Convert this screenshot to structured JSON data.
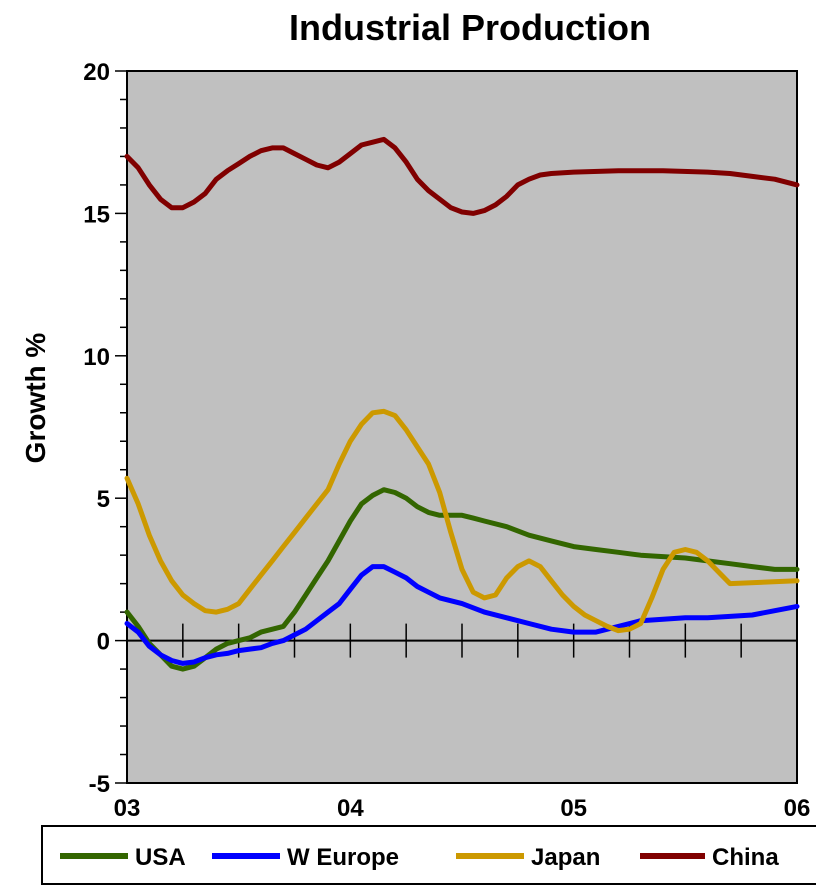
{
  "chart_data": {
    "type": "line",
    "title": "Industrial Production",
    "xlabel": "",
    "ylabel": "Growth %",
    "xlim": [
      2003,
      2006
    ],
    "ylim": [
      -5,
      20
    ],
    "y_ticks": [
      -5,
      0,
      5,
      10,
      15,
      20
    ],
    "x_ticks": [
      {
        "label": "03",
        "value": 2003
      },
      {
        "label": "04",
        "value": 2004
      },
      {
        "label": "05",
        "value": 2005
      },
      {
        "label": "06",
        "value": 2006
      }
    ],
    "grid": false,
    "plot_background": "#C0C0C0",
    "legend_position": "bottom",
    "series": [
      {
        "name": "USA",
        "color": "#336600",
        "points": [
          [
            2003.0,
            1.0
          ],
          [
            2003.05,
            0.5
          ],
          [
            2003.1,
            -0.1
          ],
          [
            2003.15,
            -0.5
          ],
          [
            2003.2,
            -0.9
          ],
          [
            2003.25,
            -1.0
          ],
          [
            2003.3,
            -0.9
          ],
          [
            2003.35,
            -0.6
          ],
          [
            2003.4,
            -0.3
          ],
          [
            2003.45,
            -0.1
          ],
          [
            2003.5,
            0.0
          ],
          [
            2003.55,
            0.1
          ],
          [
            2003.6,
            0.3
          ],
          [
            2003.7,
            0.5
          ],
          [
            2003.75,
            1.0
          ],
          [
            2003.8,
            1.6
          ],
          [
            2003.85,
            2.2
          ],
          [
            2003.9,
            2.8
          ],
          [
            2003.95,
            3.5
          ],
          [
            2004.0,
            4.2
          ],
          [
            2004.05,
            4.8
          ],
          [
            2004.1,
            5.1
          ],
          [
            2004.15,
            5.3
          ],
          [
            2004.2,
            5.2
          ],
          [
            2004.25,
            5.0
          ],
          [
            2004.3,
            4.7
          ],
          [
            2004.35,
            4.5
          ],
          [
            2004.4,
            4.4
          ],
          [
            2004.5,
            4.4
          ],
          [
            2004.55,
            4.3
          ],
          [
            2004.6,
            4.2
          ],
          [
            2004.7,
            4.0
          ],
          [
            2004.8,
            3.7
          ],
          [
            2004.9,
            3.5
          ],
          [
            2005.0,
            3.3
          ],
          [
            2005.1,
            3.2
          ],
          [
            2005.2,
            3.1
          ],
          [
            2005.3,
            3.0
          ],
          [
            2005.4,
            2.95
          ],
          [
            2005.5,
            2.9
          ],
          [
            2005.6,
            2.8
          ],
          [
            2005.7,
            2.7
          ],
          [
            2005.8,
            2.6
          ],
          [
            2005.9,
            2.5
          ],
          [
            2006.0,
            2.5
          ]
        ]
      },
      {
        "name": "W Europe",
        "color": "#0000FF",
        "points": [
          [
            2003.0,
            0.6
          ],
          [
            2003.05,
            0.3
          ],
          [
            2003.1,
            -0.2
          ],
          [
            2003.15,
            -0.5
          ],
          [
            2003.2,
            -0.7
          ],
          [
            2003.25,
            -0.8
          ],
          [
            2003.3,
            -0.75
          ],
          [
            2003.35,
            -0.6
          ],
          [
            2003.4,
            -0.5
          ],
          [
            2003.45,
            -0.45
          ],
          [
            2003.5,
            -0.35
          ],
          [
            2003.55,
            -0.3
          ],
          [
            2003.6,
            -0.25
          ],
          [
            2003.65,
            -0.1
          ],
          [
            2003.7,
            0.0
          ],
          [
            2003.75,
            0.2
          ],
          [
            2003.8,
            0.4
          ],
          [
            2003.85,
            0.7
          ],
          [
            2003.9,
            1.0
          ],
          [
            2003.95,
            1.3
          ],
          [
            2004.0,
            1.8
          ],
          [
            2004.05,
            2.3
          ],
          [
            2004.1,
            2.6
          ],
          [
            2004.15,
            2.6
          ],
          [
            2004.2,
            2.4
          ],
          [
            2004.25,
            2.2
          ],
          [
            2004.3,
            1.9
          ],
          [
            2004.35,
            1.7
          ],
          [
            2004.4,
            1.5
          ],
          [
            2004.5,
            1.3
          ],
          [
            2004.6,
            1.0
          ],
          [
            2004.7,
            0.8
          ],
          [
            2004.8,
            0.6
          ],
          [
            2004.9,
            0.4
          ],
          [
            2005.0,
            0.3
          ],
          [
            2005.1,
            0.3
          ],
          [
            2005.2,
            0.5
          ],
          [
            2005.3,
            0.7
          ],
          [
            2005.4,
            0.75
          ],
          [
            2005.5,
            0.8
          ],
          [
            2005.6,
            0.8
          ],
          [
            2005.7,
            0.85
          ],
          [
            2005.8,
            0.9
          ],
          [
            2005.9,
            1.05
          ],
          [
            2006.0,
            1.2
          ]
        ]
      },
      {
        "name": "Japan",
        "color": "#CC9900",
        "points": [
          [
            2003.0,
            5.7
          ],
          [
            2003.05,
            4.8
          ],
          [
            2003.1,
            3.7
          ],
          [
            2003.15,
            2.8
          ],
          [
            2003.2,
            2.1
          ],
          [
            2003.25,
            1.6
          ],
          [
            2003.3,
            1.3
          ],
          [
            2003.35,
            1.05
          ],
          [
            2003.4,
            1.0
          ],
          [
            2003.45,
            1.1
          ],
          [
            2003.5,
            1.3
          ],
          [
            2003.55,
            1.8
          ],
          [
            2003.6,
            2.3
          ],
          [
            2003.65,
            2.8
          ],
          [
            2003.7,
            3.3
          ],
          [
            2003.75,
            3.8
          ],
          [
            2003.8,
            4.3
          ],
          [
            2003.85,
            4.8
          ],
          [
            2003.9,
            5.3
          ],
          [
            2003.95,
            6.2
          ],
          [
            2004.0,
            7.0
          ],
          [
            2004.05,
            7.6
          ],
          [
            2004.1,
            8.0
          ],
          [
            2004.15,
            8.05
          ],
          [
            2004.2,
            7.9
          ],
          [
            2004.25,
            7.4
          ],
          [
            2004.3,
            6.8
          ],
          [
            2004.35,
            6.2
          ],
          [
            2004.4,
            5.2
          ],
          [
            2004.45,
            3.8
          ],
          [
            2004.5,
            2.5
          ],
          [
            2004.55,
            1.7
          ],
          [
            2004.6,
            1.5
          ],
          [
            2004.65,
            1.6
          ],
          [
            2004.7,
            2.2
          ],
          [
            2004.75,
            2.6
          ],
          [
            2004.8,
            2.8
          ],
          [
            2004.85,
            2.6
          ],
          [
            2004.9,
            2.1
          ],
          [
            2004.95,
            1.6
          ],
          [
            2005.0,
            1.2
          ],
          [
            2005.05,
            0.9
          ],
          [
            2005.1,
            0.7
          ],
          [
            2005.15,
            0.5
          ],
          [
            2005.2,
            0.35
          ],
          [
            2005.25,
            0.4
          ],
          [
            2005.3,
            0.6
          ],
          [
            2005.35,
            1.5
          ],
          [
            2005.4,
            2.5
          ],
          [
            2005.45,
            3.1
          ],
          [
            2005.5,
            3.2
          ],
          [
            2005.55,
            3.1
          ],
          [
            2005.6,
            2.8
          ],
          [
            2005.65,
            2.4
          ],
          [
            2005.7,
            2.0
          ],
          [
            2006.0,
            2.1
          ]
        ]
      },
      {
        "name": "China",
        "color": "#800000",
        "points": [
          [
            2003.0,
            17.0
          ],
          [
            2003.05,
            16.6
          ],
          [
            2003.1,
            16.0
          ],
          [
            2003.15,
            15.5
          ],
          [
            2003.2,
            15.2
          ],
          [
            2003.25,
            15.2
          ],
          [
            2003.3,
            15.4
          ],
          [
            2003.35,
            15.7
          ],
          [
            2003.4,
            16.2
          ],
          [
            2003.45,
            16.5
          ],
          [
            2003.5,
            16.75
          ],
          [
            2003.55,
            17.0
          ],
          [
            2003.6,
            17.2
          ],
          [
            2003.65,
            17.3
          ],
          [
            2003.7,
            17.3
          ],
          [
            2003.75,
            17.1
          ],
          [
            2003.8,
            16.9
          ],
          [
            2003.85,
            16.7
          ],
          [
            2003.9,
            16.6
          ],
          [
            2003.95,
            16.8
          ],
          [
            2004.0,
            17.1
          ],
          [
            2004.05,
            17.4
          ],
          [
            2004.1,
            17.5
          ],
          [
            2004.15,
            17.6
          ],
          [
            2004.2,
            17.3
          ],
          [
            2004.25,
            16.8
          ],
          [
            2004.3,
            16.2
          ],
          [
            2004.35,
            15.8
          ],
          [
            2004.4,
            15.5
          ],
          [
            2004.45,
            15.2
          ],
          [
            2004.5,
            15.05
          ],
          [
            2004.55,
            15.0
          ],
          [
            2004.6,
            15.1
          ],
          [
            2004.65,
            15.3
          ],
          [
            2004.7,
            15.6
          ],
          [
            2004.75,
            16.0
          ],
          [
            2004.8,
            16.2
          ],
          [
            2004.85,
            16.35
          ],
          [
            2004.9,
            16.4
          ],
          [
            2005.0,
            16.45
          ],
          [
            2005.2,
            16.5
          ],
          [
            2005.4,
            16.5
          ],
          [
            2005.6,
            16.45
          ],
          [
            2005.7,
            16.4
          ],
          [
            2005.8,
            16.3
          ],
          [
            2005.9,
            16.2
          ],
          [
            2006.0,
            16.0
          ]
        ]
      }
    ]
  }
}
